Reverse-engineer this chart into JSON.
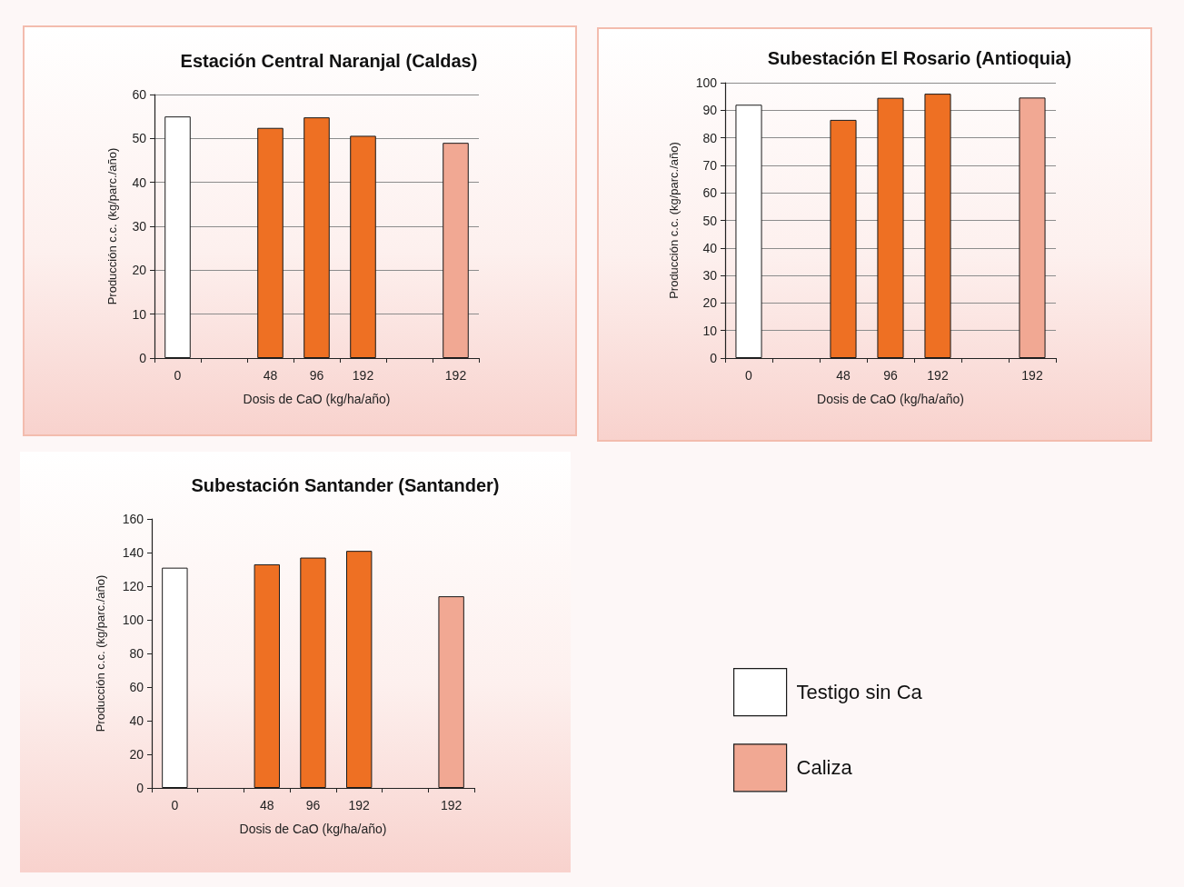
{
  "chart_data": [
    {
      "type": "bar",
      "title": "Estación Central Naranjal (Caldas)",
      "xlabel": "Dosis de CaO (kg/ha/año)",
      "ylabel": "Producción c.c. (kg/parc./año)",
      "categories": [
        "0",
        null,
        "48",
        "96",
        "192",
        null,
        "192"
      ],
      "series": [
        {
          "color": "#ffffff",
          "values": [
            55,
            null,
            null,
            null,
            null,
            null,
            null
          ]
        },
        {
          "color": "#ee7023",
          "values": [
            null,
            null,
            52.4,
            54.8,
            50.6,
            null,
            null
          ]
        },
        {
          "color": "#f1a893",
          "values": [
            null,
            null,
            null,
            null,
            null,
            null,
            49
          ]
        }
      ],
      "ylim": [
        0,
        60
      ],
      "yticks": [
        0,
        10,
        20,
        30,
        40,
        50,
        60
      ],
      "grid": "y"
    },
    {
      "type": "bar",
      "title": "Subestación El Rosario (Antioquia)",
      "xlabel": "Dosis de CaO (kg/ha/año)",
      "ylabel": "Producción c.c. (kg/parc./año)",
      "categories": [
        "0",
        null,
        "48",
        "96",
        "192",
        null,
        "192"
      ],
      "series": [
        {
          "color": "#ffffff",
          "values": [
            92,
            null,
            null,
            null,
            null,
            null,
            null
          ]
        },
        {
          "color": "#ee7023",
          "values": [
            null,
            null,
            86.5,
            94.5,
            96,
            null,
            null
          ]
        },
        {
          "color": "#f1a893",
          "values": [
            null,
            null,
            null,
            null,
            null,
            null,
            94.6
          ]
        }
      ],
      "ylim": [
        0,
        100
      ],
      "yticks": [
        0,
        10,
        20,
        30,
        40,
        50,
        60,
        70,
        80,
        90,
        100
      ],
      "grid": "y"
    },
    {
      "type": "bar",
      "title": "Subestación Santander (Santander)",
      "xlabel": "Dosis de CaO (kg/ha/año)",
      "ylabel": "Producción c.c. (kg/parc./año)",
      "categories": [
        "0",
        null,
        "48",
        "96",
        "192",
        null,
        "192"
      ],
      "series": [
        {
          "name": "Testigo sin Ca",
          "color": "#ffffff",
          "values": [
            131,
            null,
            null,
            null,
            null,
            null,
            null
          ]
        },
        {
          "name": "Caliza",
          "color": "#f1a893",
          "values": [
            null,
            null,
            null,
            null,
            null,
            null,
            114
          ]
        },
        {
          "color": "#ee7023",
          "values": [
            null,
            null,
            133,
            137,
            141,
            null,
            null
          ]
        }
      ],
      "ylim": [
        0,
        160
      ],
      "yticks": [
        0,
        20,
        40,
        60,
        80,
        100,
        120,
        140,
        160
      ],
      "legend": "right"
    }
  ]
}
